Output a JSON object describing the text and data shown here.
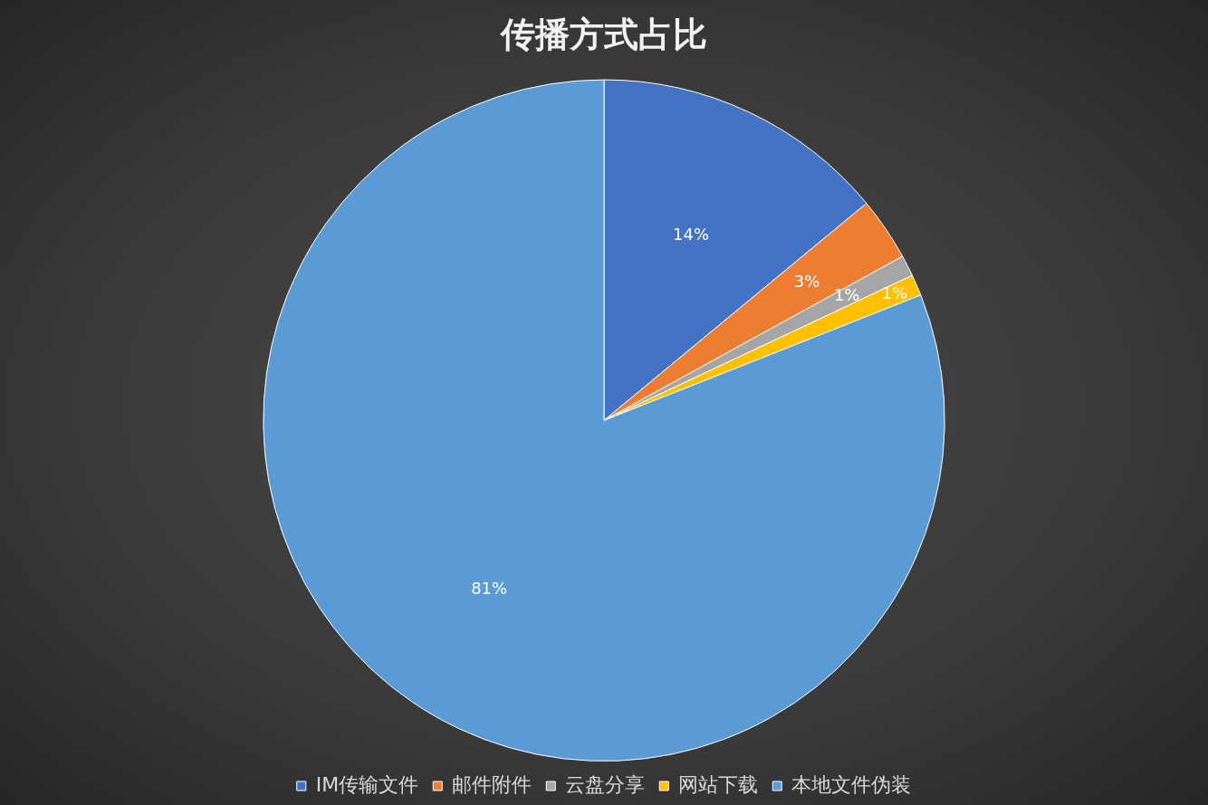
{
  "chart_data": {
    "type": "pie",
    "title": "传播方式占比",
    "categories": [
      "IM传输文件",
      "邮件附件",
      "云盘分享",
      "网站下载",
      "本地文件伪装"
    ],
    "values": [
      14,
      3,
      1,
      1,
      81
    ],
    "value_labels": [
      "14%",
      "3%",
      "1%",
      "1%",
      "81%"
    ],
    "colors": [
      "#4472c4",
      "#ed7d31",
      "#a5a5a5",
      "#ffc000",
      "#5b9bd5"
    ],
    "legend": "bottom"
  }
}
